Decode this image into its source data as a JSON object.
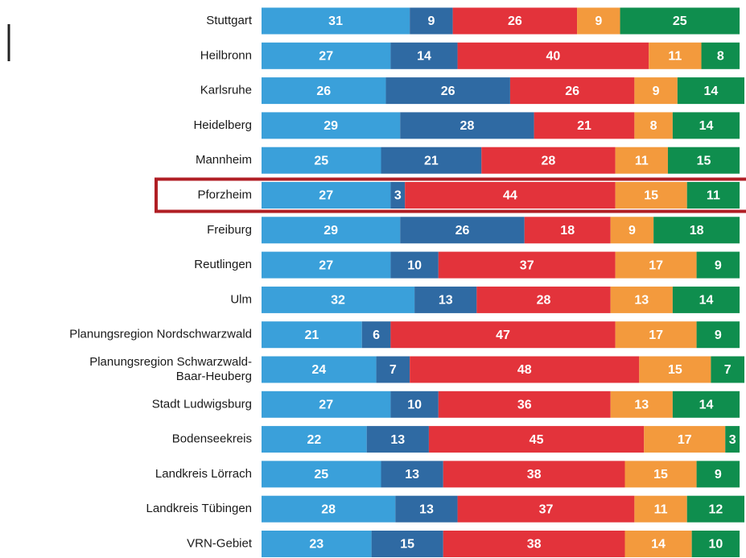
{
  "chart_data": {
    "type": "stacked-bar-horizontal",
    "categories": [
      "Stuttgart",
      "Heilbronn",
      "Karlsruhe",
      "Heidelberg",
      "Mannheim",
      "Pforzheim",
      "Freiburg",
      "Reutlingen",
      "Ulm",
      "Planungsregion Nordschwarzwald",
      "Planungsregion Schwarzwald-\nBaar-Heuberg",
      "Stadt Ludwigsburg",
      "Bodenseekreis",
      "Landkreis Lörrach",
      "Landkreis Tübingen",
      "VRN-Gebiet"
    ],
    "series": [
      {
        "color": "#3aa0da",
        "values": [
          31,
          27,
          26,
          29,
          25,
          27,
          29,
          27,
          32,
          21,
          24,
          27,
          22,
          25,
          28,
          23
        ]
      },
      {
        "color": "#2f6aa3",
        "values": [
          9,
          14,
          26,
          28,
          21,
          3,
          26,
          10,
          13,
          6,
          7,
          10,
          13,
          13,
          13,
          15
        ]
      },
      {
        "color": "#e3333b",
        "values": [
          26,
          40,
          26,
          21,
          28,
          44,
          18,
          37,
          28,
          47,
          48,
          36,
          45,
          38,
          37,
          38
        ]
      },
      {
        "color": "#f39a3d",
        "values": [
          9,
          11,
          9,
          8,
          11,
          15,
          9,
          17,
          13,
          17,
          15,
          13,
          17,
          15,
          11,
          14
        ]
      },
      {
        "color": "#0f8e4e",
        "values": [
          25,
          8,
          14,
          14,
          15,
          11,
          18,
          9,
          14,
          9,
          7,
          14,
          3,
          9,
          12,
          10
        ]
      }
    ],
    "xlim": [
      0,
      101
    ]
  }
}
